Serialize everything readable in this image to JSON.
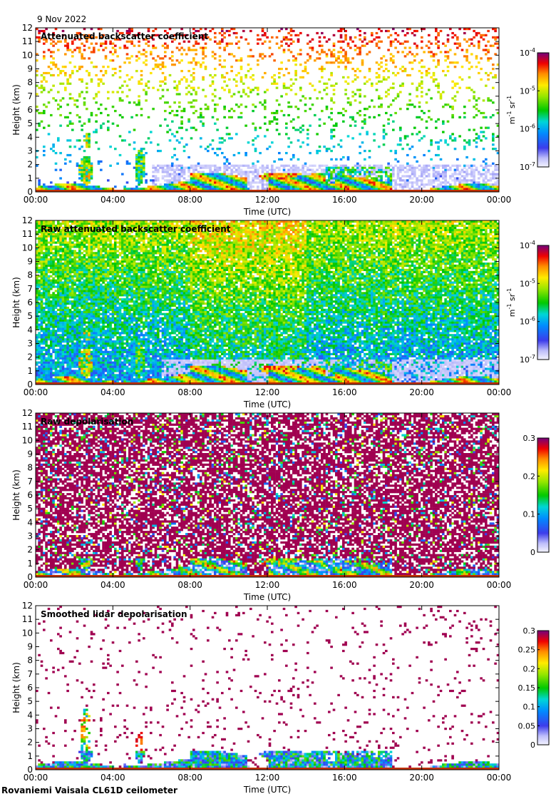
{
  "header": {
    "date": "9 Nov 2022",
    "site": "Rovaniemi Vaisala CL61D ceilometer"
  },
  "chart_data": [
    {
      "type": "heatmap",
      "title": "Attenuated backscatter coefficient",
      "xlabel": "Time (UTC)",
      "ylabel": "Height (km)",
      "x_ticks": [
        "00:00",
        "04:00",
        "08:00",
        "12:00",
        "16:00",
        "20:00",
        "00:00"
      ],
      "y_ticks": [
        "0",
        "1",
        "2",
        "3",
        "4",
        "5",
        "6",
        "7",
        "8",
        "9",
        "10",
        "11",
        "12"
      ],
      "xlim": [
        0,
        24
      ],
      "ylim": [
        0,
        12
      ],
      "colorbar": {
        "scale": "log",
        "range": [
          1e-07,
          0.0001
        ],
        "ticks": [
          {
            "base": "10",
            "exp": "-4",
            "value": 0.0001
          },
          {
            "base": "10",
            "exp": "-5",
            "value": 1e-05
          },
          {
            "base": "10",
            "exp": "-6",
            "value": 1e-06
          },
          {
            "base": "10",
            "exp": "-7",
            "value": 1e-07
          }
        ],
        "unit": {
          "m": "m",
          "m_exp": "-1",
          "sr": "sr",
          "sr_exp": "-1"
        }
      },
      "description_mode": "aerosol-noise"
    },
    {
      "type": "heatmap",
      "title": "Raw attenuated backscatter coefficient",
      "xlabel": "Time (UTC)",
      "ylabel": "Height (km)",
      "x_ticks": [
        "00:00",
        "04:00",
        "08:00",
        "12:00",
        "16:00",
        "20:00",
        "00:00"
      ],
      "y_ticks": [
        "0",
        "1",
        "2",
        "3",
        "4",
        "5",
        "6",
        "7",
        "8",
        "9",
        "10",
        "11",
        "12"
      ],
      "xlim": [
        0,
        24
      ],
      "ylim": [
        0,
        12
      ],
      "colorbar": {
        "scale": "log",
        "range": [
          1e-07,
          0.0001
        ],
        "ticks": [
          {
            "base": "10",
            "exp": "-4",
            "value": 0.0001
          },
          {
            "base": "10",
            "exp": "-5",
            "value": 1e-05
          },
          {
            "base": "10",
            "exp": "-6",
            "value": 1e-06
          },
          {
            "base": "10",
            "exp": "-7",
            "value": 1e-07
          }
        ],
        "unit": {
          "m": "m",
          "m_exp": "-1",
          "sr": "sr",
          "sr_exp": "-1"
        }
      },
      "description_mode": "raw-noise"
    },
    {
      "type": "heatmap",
      "title": "Raw depolarisation",
      "xlabel": "Time (UTC)",
      "ylabel": "Height (km)",
      "x_ticks": [
        "00:00",
        "04:00",
        "08:00",
        "12:00",
        "16:00",
        "20:00",
        "00:00"
      ],
      "y_ticks": [
        "0",
        "1",
        "2",
        "3",
        "4",
        "5",
        "6",
        "7",
        "8",
        "9",
        "10",
        "11",
        "12"
      ],
      "xlim": [
        0,
        24
      ],
      "ylim": [
        0,
        12
      ],
      "colorbar": {
        "scale": "linear",
        "range": [
          0,
          0.3
        ],
        "ticks": [
          {
            "label": "0.3",
            "value": 0.3
          },
          {
            "label": "0.2",
            "value": 0.2
          },
          {
            "label": "0.1",
            "value": 0.1
          },
          {
            "label": "0",
            "value": 0
          }
        ]
      },
      "description_mode": "depol-raw"
    },
    {
      "type": "heatmap",
      "title": "Smoothed lidar depolarisation",
      "xlabel": "Time (UTC)",
      "ylabel": "Height (km)",
      "x_ticks": [
        "00:00",
        "04:00",
        "08:00",
        "12:00",
        "16:00",
        "20:00",
        "00:00"
      ],
      "y_ticks": [
        "0",
        "1",
        "2",
        "3",
        "4",
        "5",
        "6",
        "7",
        "8",
        "9",
        "10",
        "11",
        "12"
      ],
      "xlim": [
        0,
        24
      ],
      "ylim": [
        0,
        12
      ],
      "colorbar": {
        "scale": "linear",
        "range": [
          0,
          0.3
        ],
        "ticks": [
          {
            "label": "0.3",
            "value": 0.3
          },
          {
            "label": "0.25",
            "value": 0.25
          },
          {
            "label": "0.2",
            "value": 0.2
          },
          {
            "label": "0.15",
            "value": 0.15
          },
          {
            "label": "0.1",
            "value": 0.1
          },
          {
            "label": "0.05",
            "value": 0.05
          },
          {
            "label": "0",
            "value": 0
          }
        ]
      },
      "description_mode": "depol-smooth"
    }
  ]
}
